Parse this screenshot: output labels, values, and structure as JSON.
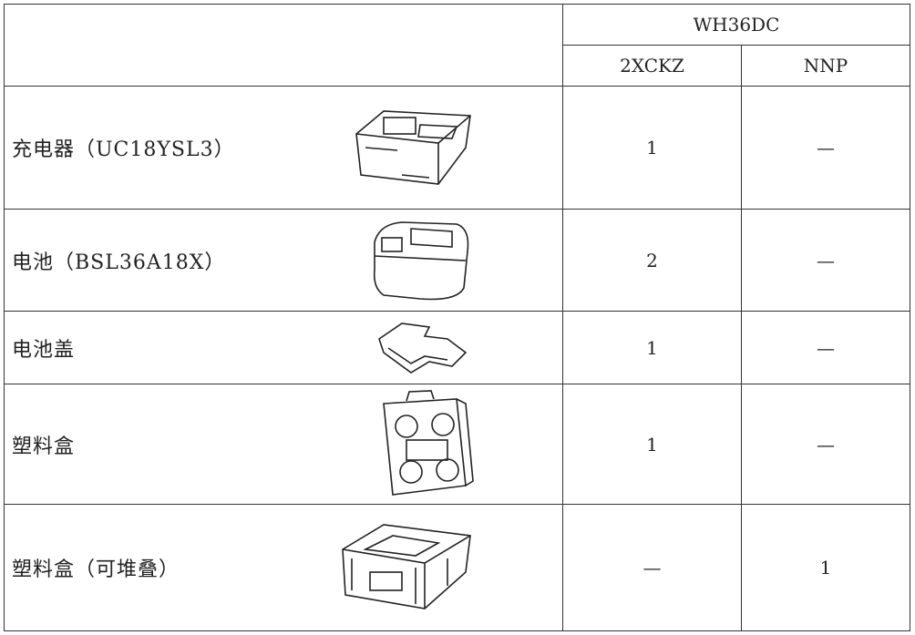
{
  "header": {
    "group": "WH36DC",
    "columns": [
      "2XCKZ",
      "NNP"
    ]
  },
  "rows": [
    {
      "item": "充电器（UC18YSL3）",
      "values": [
        1,
        "—"
      ]
    },
    {
      "item": "电池（BSL36A18X）",
      "values": [
        2,
        "—"
      ]
    },
    {
      "item": "电池盖",
      "values": [
        1,
        "—"
      ]
    },
    {
      "item": "塑料盒",
      "values": [
        1,
        "—"
      ]
    },
    {
      "item": "塑料盒（可堆叠）",
      "values": [
        "—",
        1
      ]
    }
  ]
}
